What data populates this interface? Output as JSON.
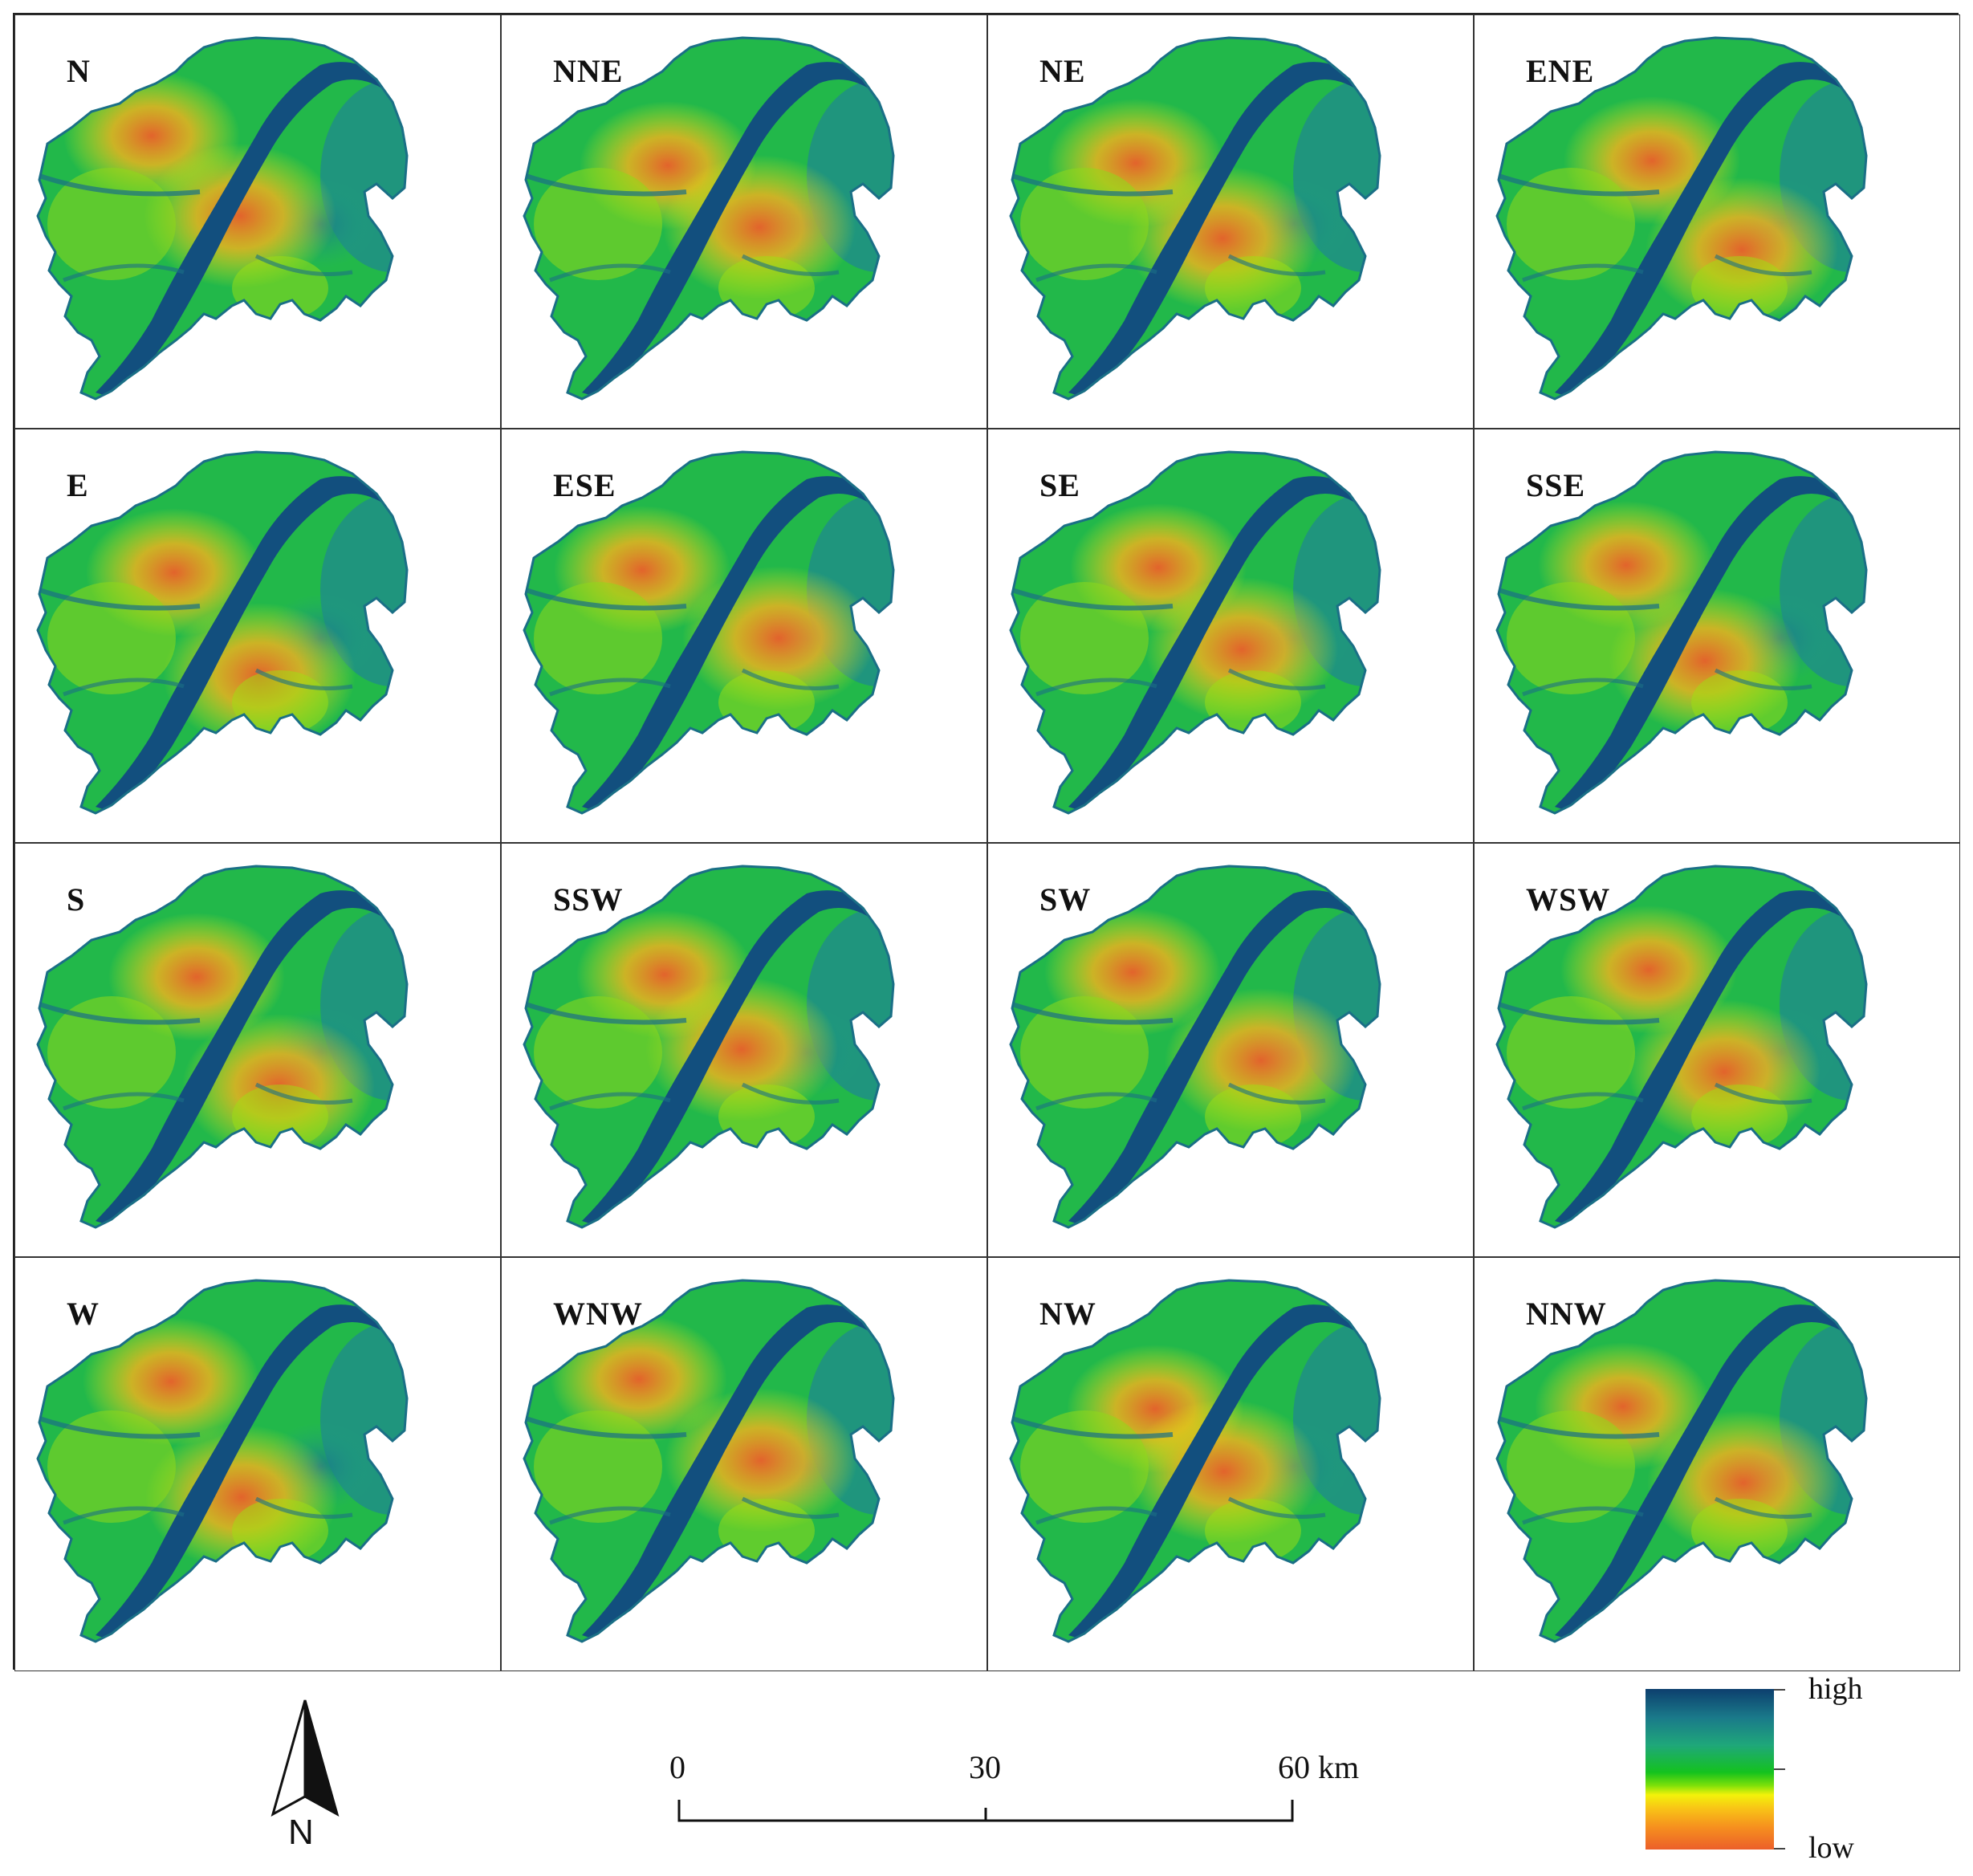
{
  "panels": [
    {
      "label": "N"
    },
    {
      "label": "NNE"
    },
    {
      "label": "NE"
    },
    {
      "label": "ENE"
    },
    {
      "label": "E"
    },
    {
      "label": "ESE"
    },
    {
      "label": "SE"
    },
    {
      "label": "SSE"
    },
    {
      "label": "S"
    },
    {
      "label": "SSW"
    },
    {
      "label": "SW"
    },
    {
      "label": "WSW"
    },
    {
      "label": "W"
    },
    {
      "label": "WNW"
    },
    {
      "label": "NW"
    },
    {
      "label": "NNW"
    }
  ],
  "north_arrow": {
    "label": "N"
  },
  "scale_bar": {
    "ticks": [
      "0",
      "30",
      "60 km"
    ]
  },
  "legend": {
    "high_label": "high",
    "low_label": "low",
    "colors": [
      "#0d3f6e",
      "#1a7a8a",
      "#1fa77a",
      "#14c21e",
      "#7be00a",
      "#f3f20a",
      "#f6901e",
      "#ec5f2a"
    ]
  }
}
